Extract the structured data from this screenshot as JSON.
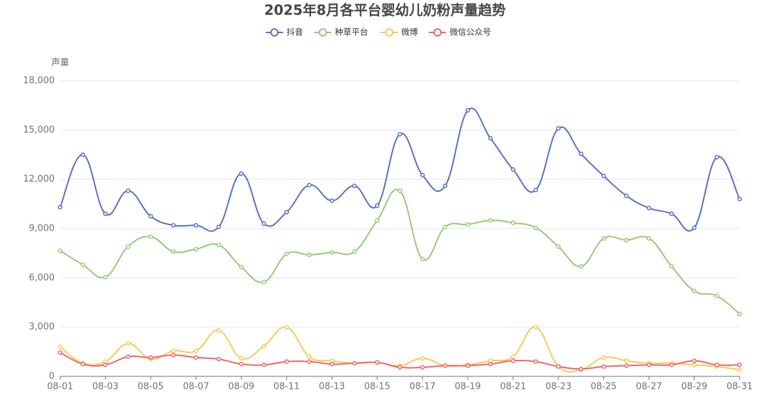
{
  "chart_data": {
    "type": "line",
    "title": "2025年8月各平台婴幼儿奶粉声量趋势",
    "y_label": "声量",
    "categories": [
      "08-01",
      null,
      "08-03",
      null,
      "08-05",
      null,
      "08-07",
      null,
      "08-09",
      null,
      "08-11",
      null,
      "08-13",
      null,
      "08-15",
      null,
      "08-17",
      null,
      "08-19",
      null,
      "08-21",
      null,
      "08-23",
      null,
      "08-25",
      null,
      "08-27",
      null,
      "08-29",
      null,
      "08-31"
    ],
    "ylim": [
      0,
      18000
    ],
    "yticks": [
      0,
      {
        "value": 3000,
        "label": "3,000"
      },
      {
        "value": 6000,
        "label": "6,000"
      },
      {
        "value": 9000,
        "label": "9,000"
      },
      {
        "value": 12000,
        "label": "12,000"
      },
      {
        "value": 15000,
        "label": "15,000"
      },
      {
        "value": 18000,
        "label": "18,000"
      }
    ],
    "grid": true,
    "smooth": true,
    "legend_position": "top",
    "series": [
      {
        "name": "抖音",
        "color": "#5470c6",
        "values": [
          10300,
          13500,
          9900,
          11300,
          9750,
          9200,
          9200,
          9100,
          12350,
          9300,
          10000,
          11650,
          10700,
          11600,
          10400,
          14750,
          12250,
          11600,
          16200,
          14500,
          12600,
          11350,
          15100,
          13550,
          12200,
          11000,
          10250,
          9900,
          9050,
          13350,
          10800
        ]
      },
      {
        "name": "种草平台",
        "color": "#91cc75",
        "values": [
          7650,
          6800,
          6050,
          7900,
          8500,
          7600,
          7750,
          8000,
          6650,
          5750,
          7450,
          7400,
          7550,
          7600,
          9500,
          11300,
          7150,
          9100,
          9250,
          9500,
          9350,
          9050,
          7900,
          6700,
          8400,
          8300,
          8400,
          6700,
          5200,
          4900,
          3800
        ]
      },
      {
        "name": "微博",
        "color": "#fac858",
        "values": [
          1800,
          800,
          900,
          2000,
          1050,
          1550,
          1550,
          2800,
          1100,
          1850,
          3000,
          1200,
          950,
          800,
          850,
          650,
          1100,
          650,
          700,
          950,
          1200,
          3000,
          600,
          400,
          1150,
          950,
          800,
          800,
          700,
          600,
          400
        ]
      },
      {
        "name": "微信公众号",
        "color": "#ee6666",
        "values": [
          1450,
          750,
          700,
          1200,
          1150,
          1300,
          1150,
          1050,
          750,
          700,
          900,
          900,
          750,
          800,
          850,
          550,
          550,
          650,
          650,
          750,
          950,
          900,
          600,
          450,
          600,
          650,
          700,
          700,
          950,
          700,
          700
        ]
      }
    ]
  }
}
